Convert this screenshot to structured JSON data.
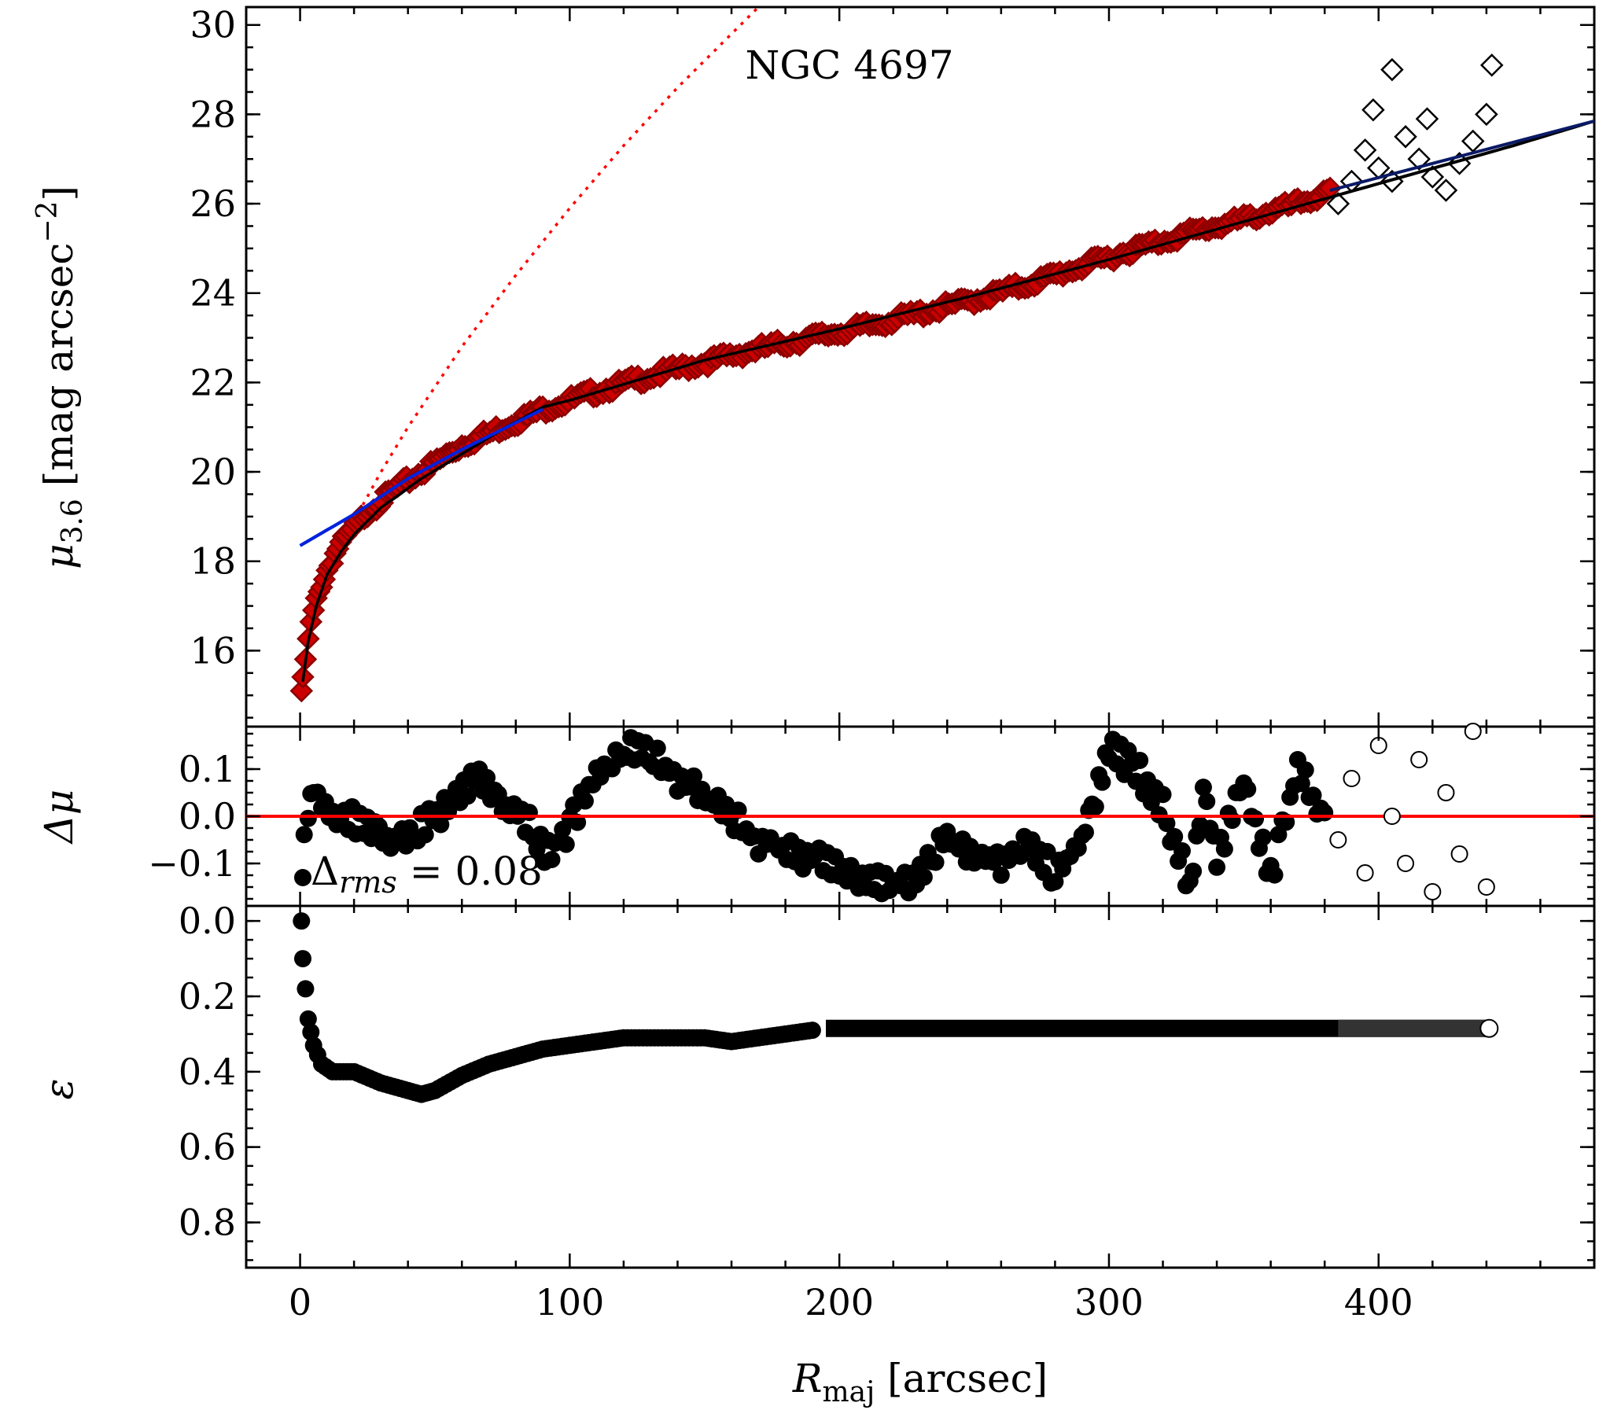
{
  "chart_data": {
    "type": "scatter",
    "galaxy": "NGC 4697",
    "xlabel": "R_maj [arcsec]",
    "xlim": [
      -20,
      480
    ],
    "xticks": [
      "0",
      "100",
      "200",
      "300",
      "400"
    ],
    "panels": [
      {
        "id": "profile",
        "ylabel": "μ_3.6 [mag arcsec⁻²]",
        "ylabel_main": "μ",
        "ylabel_sub": "3.6",
        "ylabel_rest": " [mag arcsec",
        "ylabel_sup": "−2",
        "ylabel_close": "]",
        "ylim": [
          30.4,
          14.3
        ],
        "yticks": [
          "16",
          "18",
          "20",
          "22",
          "24",
          "26",
          "28",
          "30"
        ],
        "title": "NGC 4697",
        "series": [
          {
            "name": "fitted data",
            "color": "#cc0000",
            "edge": "#8b0000",
            "marker": "diamond",
            "x": [
              0.5,
              1,
              2,
              3,
              4,
              6,
              8,
              10,
              14,
              18,
              25,
              35,
              45,
              60,
              75,
              90,
              110,
              130,
              150,
              170,
              190,
              210,
              230,
              250,
              270,
              290,
              310,
              330,
              350,
              370,
              382
            ],
            "y": [
              15.1,
              15.3,
              15.8,
              16.2,
              16.6,
              17.1,
              17.5,
              17.8,
              18.3,
              18.6,
              19.1,
              19.6,
              20.0,
              20.6,
              21.0,
              21.4,
              21.8,
              22.15,
              22.45,
              22.75,
              23.0,
              23.25,
              23.55,
              23.85,
              24.2,
              24.6,
              25.0,
              25.35,
              25.65,
              26.0,
              26.25
            ]
          },
          {
            "name": "excluded data",
            "color": "#ffffff",
            "edge": "#000000",
            "marker": "diamond",
            "x": [
              385,
              390,
              395,
              400,
              405,
              410,
              415,
              420,
              425,
              430,
              435,
              440,
              442,
              405,
              418,
              398
            ],
            "y": [
              26.0,
              26.5,
              27.2,
              26.8,
              26.5,
              27.5,
              27.0,
              26.6,
              26.3,
              26.9,
              27.4,
              28.0,
              29.1,
              29.0,
              27.9,
              28.1
            ]
          }
        ],
        "models": [
          {
            "name": "total model",
            "color": "#000000",
            "style": "solid",
            "x": [
              1,
              3,
              6,
              10,
              15,
              20,
              30,
              45,
              60,
              75,
              90,
              100,
              150,
              200,
              250,
              300,
              350,
              400,
              450,
              480
            ],
            "y": [
              15.3,
              16.2,
              17.0,
              17.7,
              18.2,
              18.6,
              19.2,
              19.85,
              20.4,
              20.95,
              21.45,
              21.6,
              22.5,
              23.2,
              23.95,
              24.75,
              25.6,
              26.45,
              27.3,
              27.85
            ]
          },
          {
            "name": "disk component",
            "color": "#0022dd",
            "style": "solid",
            "x": [
              0,
              20,
              40,
              60,
              80,
              90
            ],
            "y": [
              18.35,
              19.05,
              19.85,
              20.5,
              21.1,
              21.4
            ]
          },
          {
            "name": "bulge component",
            "color": "#ff0000",
            "style": "dotted",
            "x": [
              0,
              10,
              20,
              30,
              40,
              60,
              80,
              100,
              120,
              140,
              160,
              170
            ],
            "y": [
              15.3,
              17.6,
              18.9,
              20.0,
              21.0,
              22.8,
              24.4,
              25.9,
              27.3,
              28.6,
              29.8,
              30.4
            ]
          }
        ]
      },
      {
        "id": "residuals",
        "ylabel": "Δμ",
        "ylim": [
          0.19,
          -0.19
        ],
        "yticks": [
          "−0.1",
          "0.0",
          "0.1"
        ],
        "ytick_values": [
          -0.1,
          0.0,
          0.1
        ],
        "annotation": "Δ_rms = 0.08",
        "anno_main": "Δ",
        "anno_sub": "rms",
        "anno_rest": " = 0.08",
        "zero_line_color": "#ff0000",
        "series": [
          {
            "name": "fitted residuals",
            "color": "#000000",
            "marker": "circle",
            "x": [
              1,
              1.5,
              3,
              5,
              8,
              15,
              25,
              35,
              45,
              55,
              65,
              75,
              85,
              92,
              100,
              110,
              120,
              128,
              140,
              155,
              170,
              185,
              200,
              210,
              220,
              230,
              240,
              250,
              260,
              270,
              280,
              290,
              295,
              300,
              310,
              320,
              330,
              335,
              340,
              350,
              360,
              370,
              380
            ],
            "y": [
              -0.13,
              -0.06,
              0.0,
              0.06,
              0.02,
              0.0,
              -0.02,
              -0.05,
              -0.02,
              0.02,
              0.08,
              0.03,
              -0.02,
              -0.08,
              -0.02,
              0.09,
              0.13,
              0.15,
              0.08,
              0.02,
              -0.05,
              -0.08,
              -0.11,
              -0.14,
              -0.15,
              -0.12,
              -0.05,
              -0.08,
              -0.1,
              -0.06,
              -0.12,
              -0.05,
              0.05,
              0.14,
              0.1,
              0.02,
              -0.15,
              0.05,
              -0.1,
              0.08,
              -0.13,
              0.1,
              0.0
            ]
          },
          {
            "name": "excluded residuals",
            "color": "#ffffff",
            "edge": "#000000",
            "marker": "circle",
            "x": [
              385,
              390,
              395,
              400,
              405,
              410,
              415,
              420,
              425,
              430,
              435,
              440
            ],
            "y": [
              -0.05,
              0.08,
              -0.12,
              0.15,
              0.0,
              -0.1,
              0.12,
              -0.16,
              0.05,
              -0.08,
              0.18,
              -0.15
            ]
          }
        ]
      },
      {
        "id": "ellipticity",
        "ylabel": "ε",
        "ylim": [
          -0.04,
          0.92
        ],
        "yticks": [
          "0.0",
          "0.2",
          "0.4",
          "0.6",
          "0.8"
        ],
        "series": [
          {
            "name": "ellipticity",
            "color": "#000000",
            "marker": "circle",
            "x": [
              0.5,
              1,
              2,
              3,
              5,
              8,
              12,
              20,
              30,
              40,
              45,
              50,
              60,
              70,
              80,
              90,
              100,
              110,
              120,
              130,
              140,
              150,
              160,
              170,
              180,
              190
            ],
            "y": [
              0.0,
              0.1,
              0.18,
              0.26,
              0.33,
              0.38,
              0.4,
              0.4,
              0.43,
              0.45,
              0.46,
              0.45,
              0.41,
              0.38,
              0.36,
              0.34,
              0.33,
              0.32,
              0.31,
              0.31,
              0.31,
              0.31,
              0.32,
              0.31,
              0.3,
              0.29
            ]
          },
          {
            "name": "fixed ellipticity",
            "color": "#000000",
            "marker": "circle",
            "x": [
              195,
              440
            ],
            "y": [
              0.285,
              0.285
            ]
          },
          {
            "name": "excluded ellipticity",
            "color": "#ffffff",
            "edge": "#000000",
            "marker": "circle",
            "x": [
              441
            ],
            "y": [
              0.285
            ]
          }
        ]
      }
    ]
  }
}
